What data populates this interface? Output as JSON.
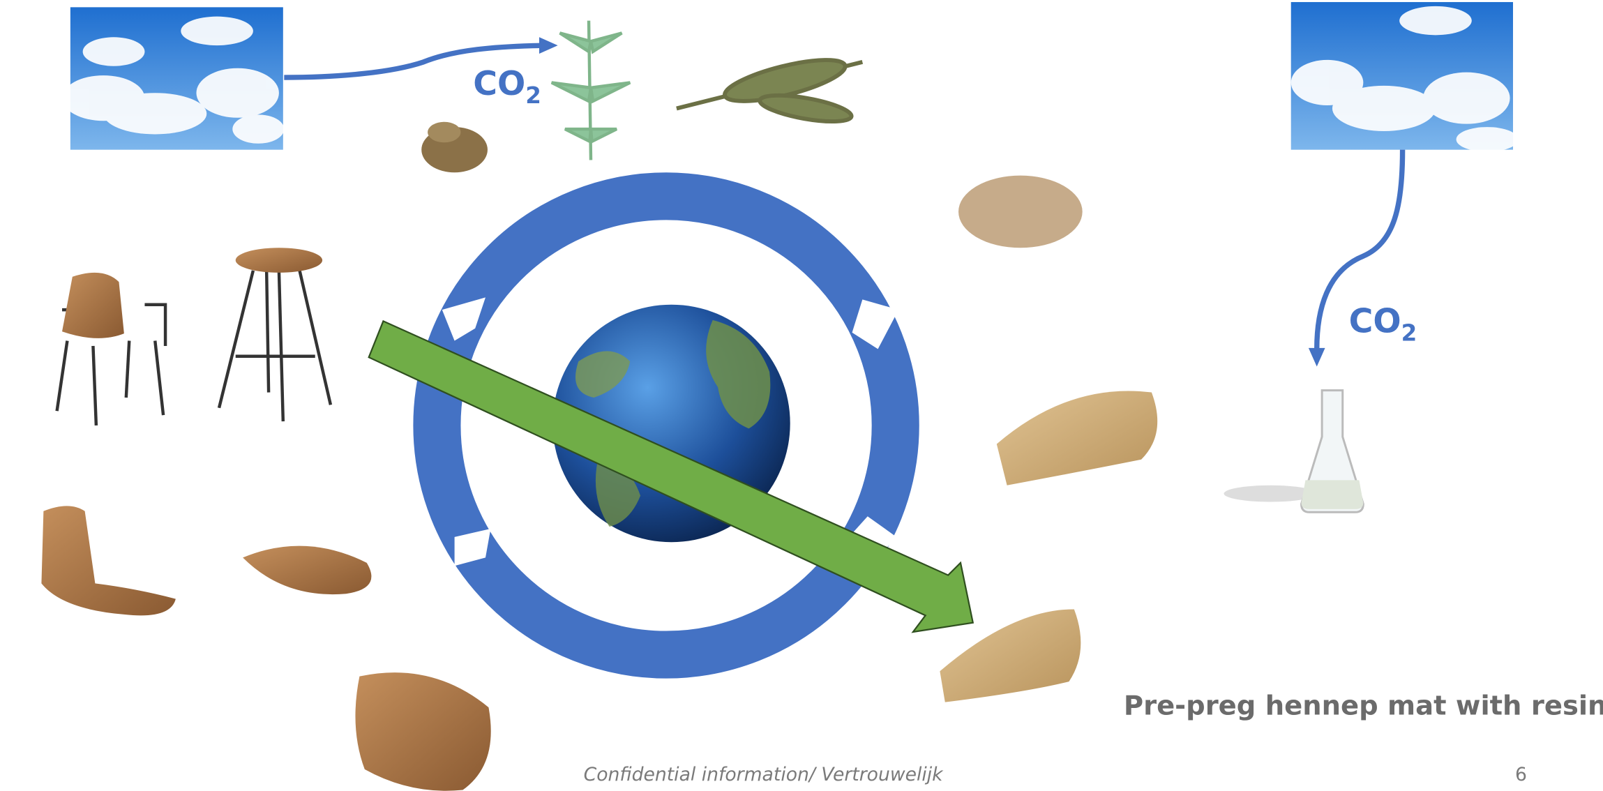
{
  "slide": {
    "labels": {
      "co2_top": {
        "main": "CO",
        "sub": "2"
      },
      "co2_right": {
        "main": "CO",
        "sub": "2"
      },
      "caption": "Pre-preg hennep mat with resin"
    },
    "footer": {
      "confidential": "Confidential information/ Vertrouwelijk",
      "page_number": "6"
    }
  }
}
